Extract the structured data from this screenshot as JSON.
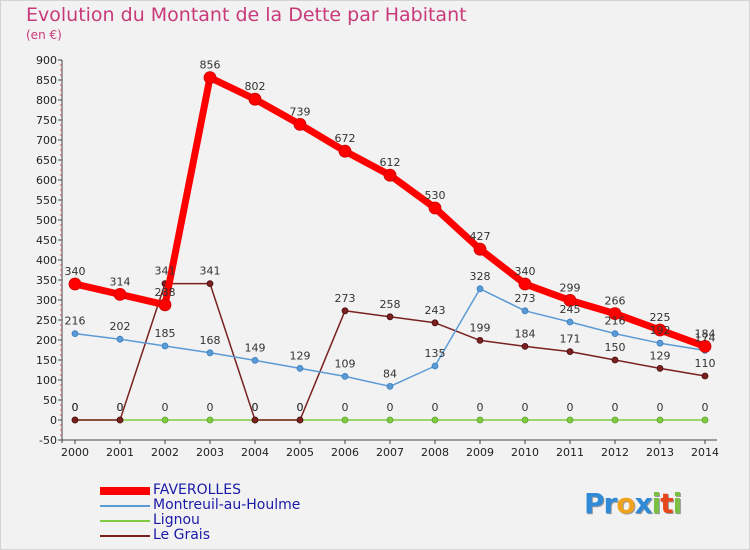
{
  "chart_data": {
    "type": "line",
    "title": "Evolution du Montant de la Dette par Habitant",
    "unit_label": "(en €)",
    "x": [
      "2000",
      "2001",
      "2002",
      "2003",
      "2004",
      "2005",
      "2006",
      "2007",
      "2008",
      "2009",
      "2010",
      "2011",
      "2012",
      "2013",
      "2014"
    ],
    "ylim": [
      -50,
      900
    ],
    "yticks": [
      -50,
      0,
      50,
      100,
      150,
      200,
      250,
      300,
      350,
      400,
      450,
      500,
      550,
      600,
      650,
      700,
      750,
      800,
      850,
      900
    ],
    "grid": false,
    "legend_position": "bottom-left",
    "series": [
      {
        "name": "FAVEROLLES",
        "color": "#ff0000",
        "values": [
          340,
          314,
          288,
          856,
          802,
          739,
          672,
          612,
          530,
          427,
          340,
          299,
          266,
          225,
          184
        ],
        "labels": [
          "340",
          "314",
          "288",
          "856",
          "802",
          "739",
          "672",
          "612",
          "530",
          "427",
          "340",
          "299",
          "266",
          "225",
          "184"
        ]
      },
      {
        "name": "Montreuil-au-Houlme",
        "color": "#5b9bd5",
        "values": [
          216,
          202,
          185,
          168,
          149,
          129,
          109,
          84,
          135,
          328,
          273,
          245,
          216,
          192,
          174
        ],
        "labels": [
          "216",
          "202",
          "185",
          "168",
          "149",
          "129",
          "109",
          "84",
          "135",
          "328",
          "273",
          "245",
          "216",
          "192",
          "174"
        ]
      },
      {
        "name": "Lignou",
        "color": "#80cc40",
        "values": [
          0,
          0,
          0,
          0,
          0,
          0,
          0,
          0,
          0,
          0,
          0,
          0,
          0,
          0,
          0
        ],
        "labels": [
          "0",
          "0",
          "0",
          "0",
          "0",
          "0",
          "0",
          "0",
          "0",
          "0",
          "0",
          "0",
          "0",
          "0",
          "0"
        ]
      },
      {
        "name": "Le Grais",
        "color": "#7a2020",
        "values": [
          0,
          0,
          341,
          341,
          0,
          0,
          273,
          258,
          243,
          199,
          184,
          171,
          150,
          129,
          110
        ],
        "labels": [
          "0",
          "0",
          "341",
          "341",
          "0",
          "0",
          "273",
          "258",
          "243",
          "199",
          "184",
          "171",
          "150",
          "129",
          "110"
        ]
      }
    ]
  },
  "logo": {
    "text": "Proxiti",
    "letters": [
      "P",
      "r",
      "o",
      "x",
      "i",
      "t",
      "i"
    ],
    "colors": [
      "#2f8ad8",
      "#2f8ad8",
      "#f0a21c",
      "#2f8ad8",
      "#7ac143",
      "#e6461c",
      "#7ac143"
    ]
  }
}
